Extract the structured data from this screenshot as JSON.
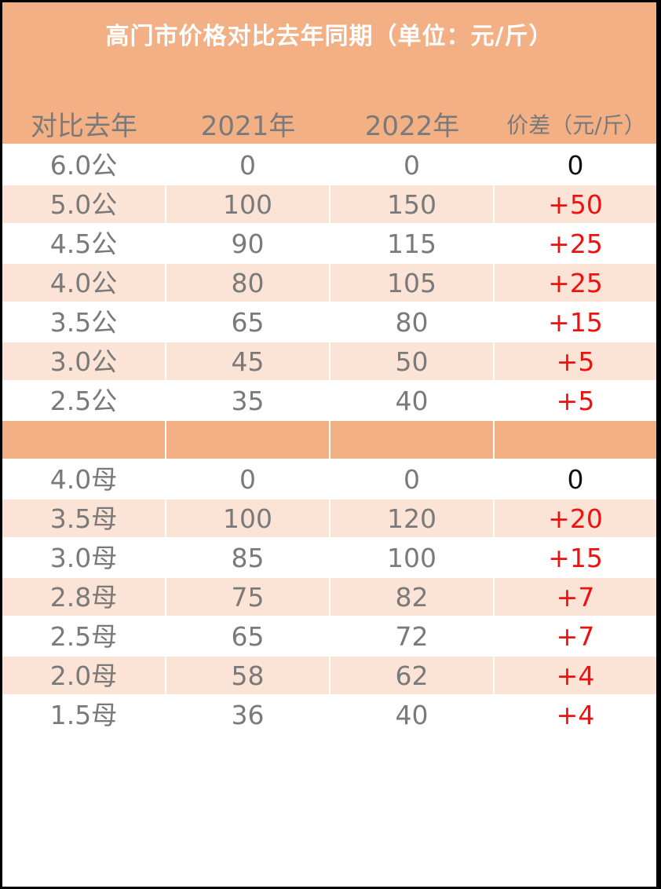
{
  "title": "高门市价格对比去年同期（单位：元/斤）",
  "headers": [
    "对比去年",
    "2021年",
    "2022年",
    "价差（元/斤）"
  ],
  "rows": [
    {
      "spec": "6.0公",
      "y2021": "0",
      "y2022": "0",
      "diff": "0"
    },
    {
      "spec": "5.0公",
      "y2021": "100",
      "y2022": "150",
      "diff": "+50"
    },
    {
      "spec": "4.5公",
      "y2021": "90",
      "y2022": "115",
      "diff": "+25"
    },
    {
      "spec": "4.0公",
      "y2021": "80",
      "y2022": "105",
      "diff": "+25"
    },
    {
      "spec": "3.5公",
      "y2021": "65",
      "y2022": "80",
      "diff": "+15"
    },
    {
      "spec": "3.0公",
      "y2021": "45",
      "y2022": "50",
      "diff": "+5"
    },
    {
      "spec": "2.5公",
      "y2021": "35",
      "y2022": "40",
      "diff": "+5"
    },
    {
      "spec": "",
      "y2021": "",
      "y2022": "",
      "diff": ""
    },
    {
      "spec": "4.0母",
      "y2021": "0",
      "y2022": "0",
      "diff": "0"
    },
    {
      "spec": "3.5母",
      "y2021": "100",
      "y2022": "120",
      "diff": "+20"
    },
    {
      "spec": "3.0母",
      "y2021": "85",
      "y2022": "100",
      "diff": "+15"
    },
    {
      "spec": "2.8母",
      "y2021": "75",
      "y2022": "82",
      "diff": "+7"
    },
    {
      "spec": "2.5母",
      "y2021": "65",
      "y2022": "72",
      "diff": "+7"
    },
    {
      "spec": "2.0母",
      "y2021": "58",
      "y2022": "62",
      "diff": "+4"
    },
    {
      "spec": "1.5母",
      "y2021": "36",
      "y2022": "40",
      "diff": "+4"
    }
  ],
  "colors": {
    "header_bg": "#f2b084",
    "row_shade": "#fbe3d6",
    "positive_diff": "#ee1111",
    "zero_diff": "#111111",
    "text": "#7a7a7a"
  }
}
